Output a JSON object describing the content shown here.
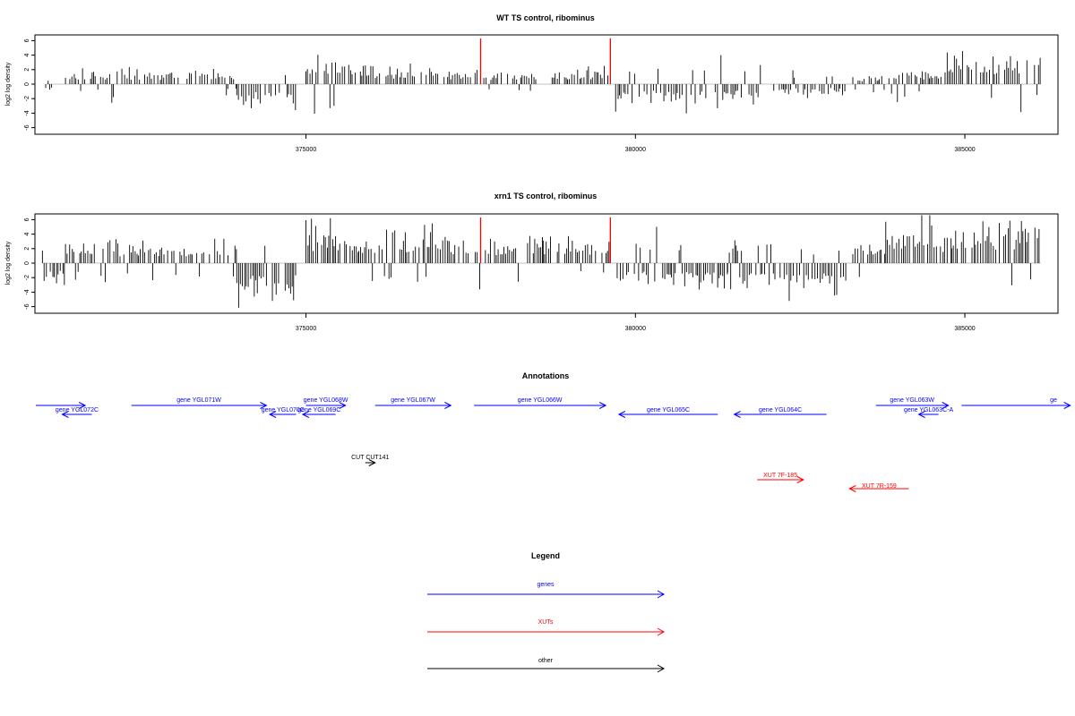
{
  "panels": [
    {
      "title": "WT TS control, ribominus",
      "ylabel": "log2 log density"
    },
    {
      "title": "xrn1 TS control, ribominus",
      "ylabel": "log2 log density"
    }
  ],
  "annotations_title": "Annotations",
  "legend": {
    "title": "Legend",
    "items": [
      {
        "label": "genes",
        "color": "#0000ff"
      },
      {
        "label": "XUTs",
        "color": "#ff0000"
      },
      {
        "label": "other",
        "color": "#000000"
      }
    ]
  },
  "chart_data": [
    {
      "type": "bar",
      "title": "WT TS control, ribominus",
      "xlabel": "",
      "ylabel": "log2 log density",
      "xlim": [
        370900,
        386400
      ],
      "ylim": [
        -7,
        7
      ],
      "yticks": [
        -6,
        -4,
        -2,
        0,
        2,
        4,
        6
      ],
      "xticks": [
        375000,
        380000,
        385000
      ],
      "grid": false,
      "highlight_lines": {
        "color": "#ff0000",
        "x": [
          377650,
          379620
        ],
        "height": 6.3
      },
      "coverage": [
        {
          "x0": 371050,
          "x1": 371150,
          "level": 1.2,
          "mode": "mixed"
        },
        {
          "x0": 371350,
          "x1": 373950,
          "level": 2.2,
          "mode": "pos"
        },
        {
          "x0": 373950,
          "x1": 374850,
          "level": -3.8,
          "mode": "neg"
        },
        {
          "x0": 375000,
          "x1": 375700,
          "level": 3.8,
          "mode": "pos"
        },
        {
          "x0": 375700,
          "x1": 376300,
          "level": 2.8,
          "mode": "pos"
        },
        {
          "x0": 376300,
          "x1": 377100,
          "level": 2.8,
          "mode": "pos"
        },
        {
          "x0": 377150,
          "x1": 377600,
          "level": 2.2,
          "mode": "pos"
        },
        {
          "x0": 377700,
          "x1": 378500,
          "level": 2.0,
          "mode": "pos"
        },
        {
          "x0": 378700,
          "x1": 379600,
          "level": 2.4,
          "mode": "pos"
        },
        {
          "x0": 379700,
          "x1": 381400,
          "level": -3.4,
          "mode": "neg"
        },
        {
          "x0": 381400,
          "x1": 381900,
          "level": -3.0,
          "mode": "neg"
        },
        {
          "x0": 382100,
          "x1": 383200,
          "level": -2.0,
          "mode": "neg"
        },
        {
          "x0": 383300,
          "x1": 383700,
          "level": 1.4,
          "mode": "pos"
        },
        {
          "x0": 383700,
          "x1": 384700,
          "level": 2.4,
          "mode": "pos"
        },
        {
          "x0": 384700,
          "x1": 386150,
          "level": 4.5,
          "mode": "pos"
        }
      ]
    },
    {
      "type": "bar",
      "title": "xrn1 TS control, ribominus",
      "xlabel": "",
      "ylabel": "log2 log density",
      "xlim": [
        370900,
        386400
      ],
      "ylim": [
        -7,
        7
      ],
      "yticks": [
        -6,
        -4,
        -2,
        0,
        2,
        4,
        6
      ],
      "xticks": [
        375000,
        380000,
        385000
      ],
      "grid": false,
      "highlight_lines": {
        "color": "#ff0000",
        "x": [
          377650,
          379620
        ],
        "height": 6.3
      },
      "coverage": [
        {
          "x0": 371000,
          "x1": 371350,
          "level": -3.5,
          "mode": "neg"
        },
        {
          "x0": 371350,
          "x1": 373950,
          "level": 3.4,
          "mode": "pos"
        },
        {
          "x0": 373950,
          "x1": 374850,
          "level": -6.0,
          "mode": "neg"
        },
        {
          "x0": 375000,
          "x1": 375800,
          "level": 5.8,
          "mode": "pos"
        },
        {
          "x0": 375800,
          "x1": 377150,
          "level": 5.0,
          "mode": "pos"
        },
        {
          "x0": 377150,
          "x1": 377650,
          "level": 3.8,
          "mode": "pos"
        },
        {
          "x0": 377700,
          "x1": 378600,
          "level": 3.6,
          "mode": "pos"
        },
        {
          "x0": 378600,
          "x1": 379600,
          "level": 3.8,
          "mode": "pos"
        },
        {
          "x0": 379700,
          "x1": 381400,
          "level": -4.2,
          "mode": "neg"
        },
        {
          "x0": 381400,
          "x1": 381800,
          "level": -3.5,
          "mode": "mixed"
        },
        {
          "x0": 381800,
          "x1": 383250,
          "level": -4.5,
          "mode": "neg"
        },
        {
          "x0": 383300,
          "x1": 383800,
          "level": 3.0,
          "mode": "pos"
        },
        {
          "x0": 383800,
          "x1": 384800,
          "level": 5.8,
          "mode": "pos"
        },
        {
          "x0": 384800,
          "x1": 386150,
          "level": 5.8,
          "mode": "pos"
        }
      ]
    },
    {
      "type": "annotation-track",
      "title": "Annotations",
      "xlim": [
        370900,
        386400
      ],
      "features": [
        {
          "label": "",
          "class": "gene",
          "strand": "+",
          "start": 370900,
          "end": 371650,
          "row": "upper"
        },
        {
          "label": "gene YGL072C",
          "class": "gene",
          "strand": "-",
          "start": 371300,
          "end": 371750,
          "row": "lower"
        },
        {
          "label": "gene YGL071W",
          "class": "gene",
          "strand": "+",
          "start": 372350,
          "end": 374400,
          "row": "upper"
        },
        {
          "label": "gene YGL070C",
          "class": "gene",
          "strand": "-",
          "start": 374450,
          "end": 374850,
          "row": "lower"
        },
        {
          "label": "gene YGL069C",
          "class": "gene",
          "strand": "-",
          "start": 374950,
          "end": 375450,
          "row": "lower"
        },
        {
          "label": "gene YGL068W",
          "class": "gene",
          "strand": "+",
          "start": 375000,
          "end": 375600,
          "row": "upper"
        },
        {
          "label": "gene YGL067W",
          "class": "gene",
          "strand": "+",
          "start": 376050,
          "end": 377200,
          "row": "upper"
        },
        {
          "label": "gene YGL066W",
          "class": "gene",
          "strand": "+",
          "start": 377550,
          "end": 379550,
          "row": "upper"
        },
        {
          "label": "gene YGL065C",
          "class": "gene",
          "strand": "-",
          "start": 379750,
          "end": 381250,
          "row": "lower"
        },
        {
          "label": "gene YGL064C",
          "class": "gene",
          "strand": "-",
          "start": 381500,
          "end": 382900,
          "row": "lower"
        },
        {
          "label": "gene YGL063W",
          "class": "gene",
          "strand": "+",
          "start": 383650,
          "end": 384750,
          "row": "upper"
        },
        {
          "label": "gene YGL063C-A",
          "class": "gene",
          "strand": "-",
          "start": 384300,
          "end": 384600,
          "row": "lower"
        },
        {
          "label": "ge",
          "class": "gene",
          "strand": "+",
          "start": 384950,
          "end": 386600,
          "row": "upper"
        },
        {
          "label": "CUT CUT141",
          "class": "other",
          "strand": "+",
          "start": 375900,
          "end": 376050,
          "row": "cut"
        },
        {
          "label": "XUT 7F-185",
          "class": "XUT",
          "strand": "+",
          "start": 381850,
          "end": 382550,
          "row": "xut1"
        },
        {
          "label": "XUT 7R-159",
          "class": "XUT",
          "strand": "-",
          "start": 383250,
          "end": 384150,
          "row": "xut2"
        }
      ]
    }
  ]
}
